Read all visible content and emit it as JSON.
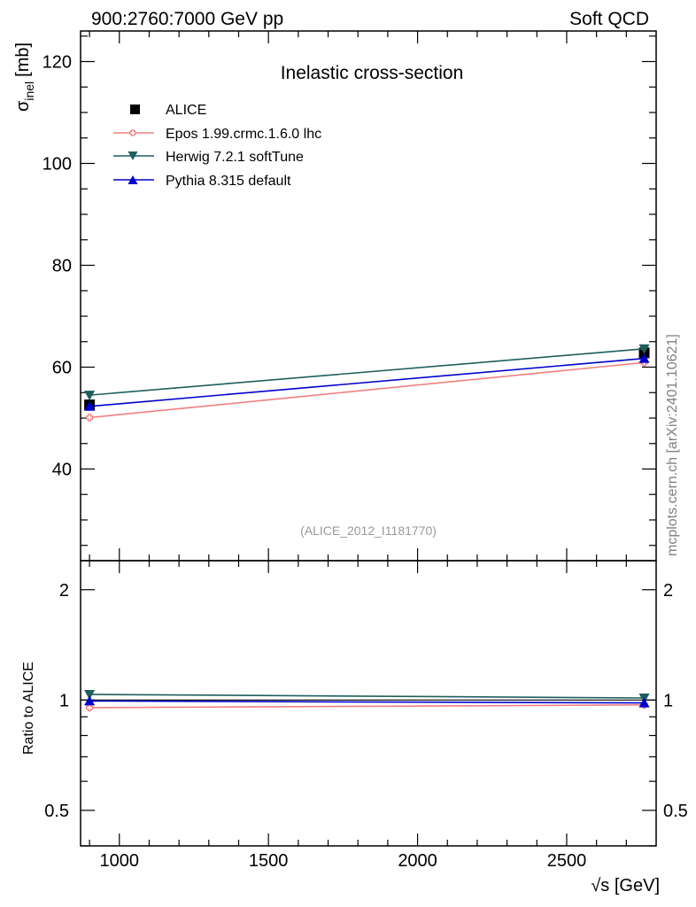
{
  "header": {
    "left": "900:2760:7000 GeV pp",
    "right": "Soft QCD"
  },
  "side_label": "mcplots.cern.ch [arXiv:2401.10621]",
  "analysis_tag": "(ALICE_2012_I1181770)",
  "colors": {
    "ALICE": "#000000",
    "Epos": "#f08080",
    "Herwig": "#1f5e5e",
    "Pythia": "#0000cc"
  },
  "chart_data": [
    {
      "type": "line",
      "panel": "main",
      "title": "Inelastic cross-section",
      "ylabel_main": "σ",
      "ylabel_sub": "inel",
      "ylabel_unit": "[mb]",
      "xlim": [
        870,
        2800
      ],
      "ylim": [
        22,
        126
      ],
      "xticks": [
        1000,
        1500,
        2000,
        2500
      ],
      "yticks": [
        40,
        60,
        80,
        100,
        120
      ],
      "x": [
        900,
        2760
      ],
      "series": [
        {
          "name": "ALICE",
          "marker": "square",
          "values": [
            52.6,
            62.8
          ]
        },
        {
          "name": "Epos 1.99.crmc.1.6.0 lhc",
          "marker": "open-cross",
          "values": [
            50.1,
            60.9
          ]
        },
        {
          "name": "Herwig 7.2.1 softTune",
          "marker": "triangle-down",
          "values": [
            54.5,
            63.6
          ]
        },
        {
          "name": "Pythia 8.315 default",
          "marker": "triangle-up",
          "values": [
            52.3,
            61.7
          ]
        }
      ]
    },
    {
      "type": "line",
      "panel": "ratio",
      "ylabel": "Ratio to ALICE",
      "xlabel": "√s [GeV]",
      "xlim": [
        870,
        2800
      ],
      "ylim": [
        0.4,
        2.4
      ],
      "yscale": "log",
      "xticks": [
        1000,
        1500,
        2000,
        2500
      ],
      "yticks": [
        0.5,
        1,
        2
      ],
      "yticklabels": [
        "0.5",
        "1",
        "2"
      ],
      "x": [
        900,
        2760
      ],
      "series": [
        {
          "name": "Epos 1.99.crmc.1.6.0 lhc",
          "marker": "open-cross",
          "values": [
            0.953,
            0.97
          ]
        },
        {
          "name": "Herwig 7.2.1 softTune",
          "marker": "triangle-down",
          "values": [
            1.036,
            1.013
          ]
        },
        {
          "name": "Pythia 8.315 default",
          "marker": "triangle-up",
          "values": [
            0.994,
            0.982
          ]
        }
      ]
    }
  ]
}
